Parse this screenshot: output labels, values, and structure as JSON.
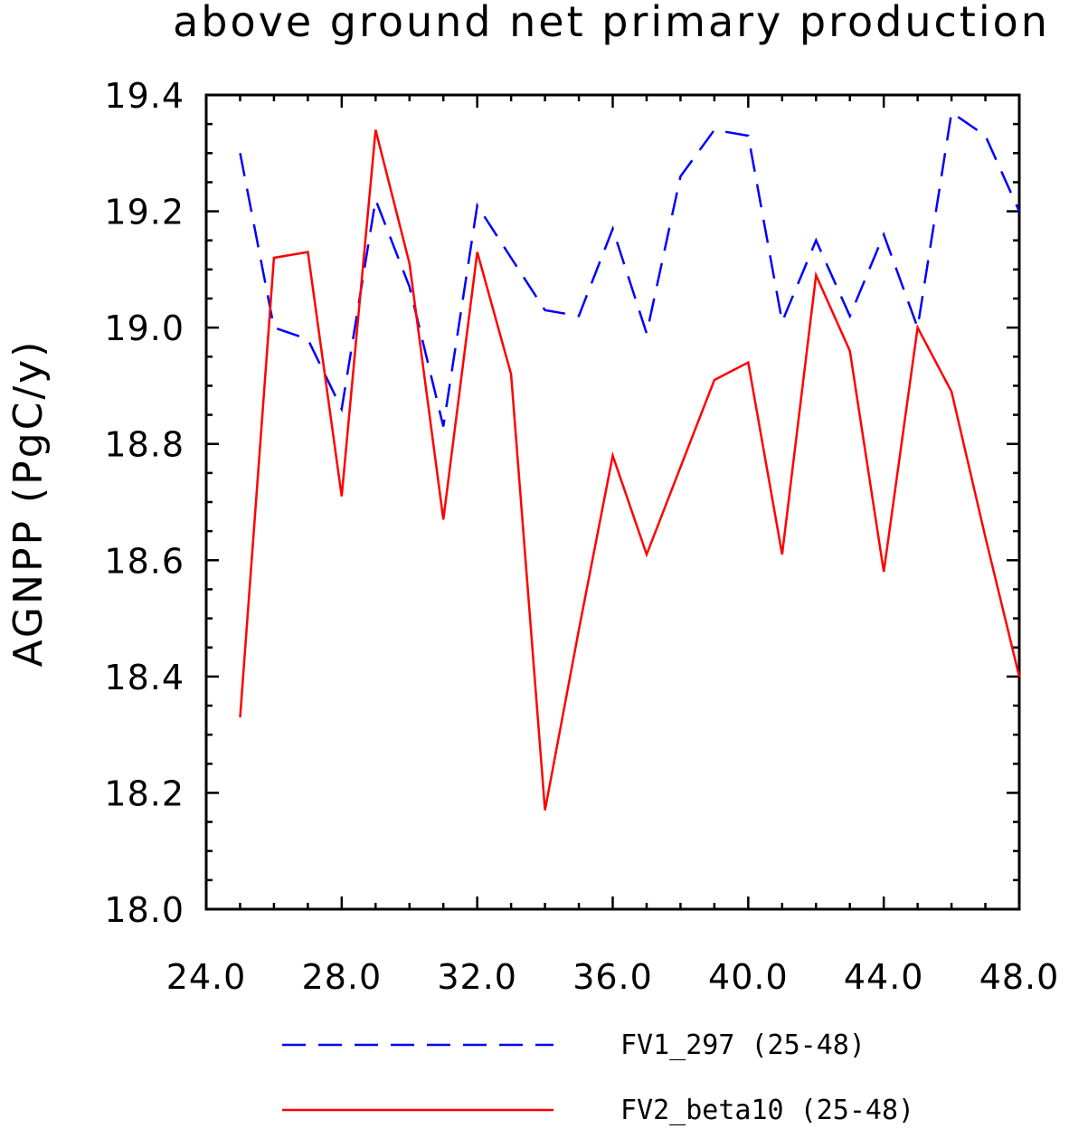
{
  "chart_data": {
    "type": "line",
    "title": "above ground net primary production",
    "xlabel": "",
    "ylabel": "AGNPP  (PgC/y)",
    "xlim": [
      24,
      48
    ],
    "ylim": [
      18.0,
      19.4
    ],
    "x_ticks": [
      "24.0",
      "28.0",
      "32.0",
      "36.0",
      "40.0",
      "44.0",
      "48.0"
    ],
    "y_ticks": [
      "18.0",
      "18.2",
      "18.4",
      "18.6",
      "18.8",
      "19.0",
      "19.2",
      "19.4"
    ],
    "x": [
      25,
      26,
      27,
      28,
      29,
      30,
      31,
      32,
      33,
      34,
      35,
      36,
      37,
      38,
      39,
      40,
      41,
      42,
      43,
      44,
      45,
      46,
      47,
      48
    ],
    "series": [
      {
        "name": "FV1_297 (25-48)",
        "color": "#0000ff",
        "style": "dashed",
        "values": [
          19.3,
          19.0,
          18.98,
          18.86,
          19.22,
          19.07,
          18.83,
          19.21,
          19.12,
          19.03,
          19.02,
          19.17,
          18.99,
          19.26,
          19.34,
          19.33,
          19.01,
          19.15,
          19.02,
          19.16,
          19.0,
          19.37,
          19.33,
          19.2
        ]
      },
      {
        "name": "FV2_beta10 (25-48)",
        "color": "#ff0000",
        "style": "solid",
        "values": [
          18.33,
          19.12,
          19.13,
          18.71,
          19.34,
          19.11,
          18.67,
          19.13,
          18.92,
          18.17,
          18.48,
          18.78,
          18.61,
          18.76,
          18.91,
          18.94,
          18.61,
          19.09,
          18.96,
          18.58,
          19.0,
          18.89,
          18.64,
          18.4
        ]
      }
    ],
    "grid": false,
    "legend_position": "bottom"
  }
}
